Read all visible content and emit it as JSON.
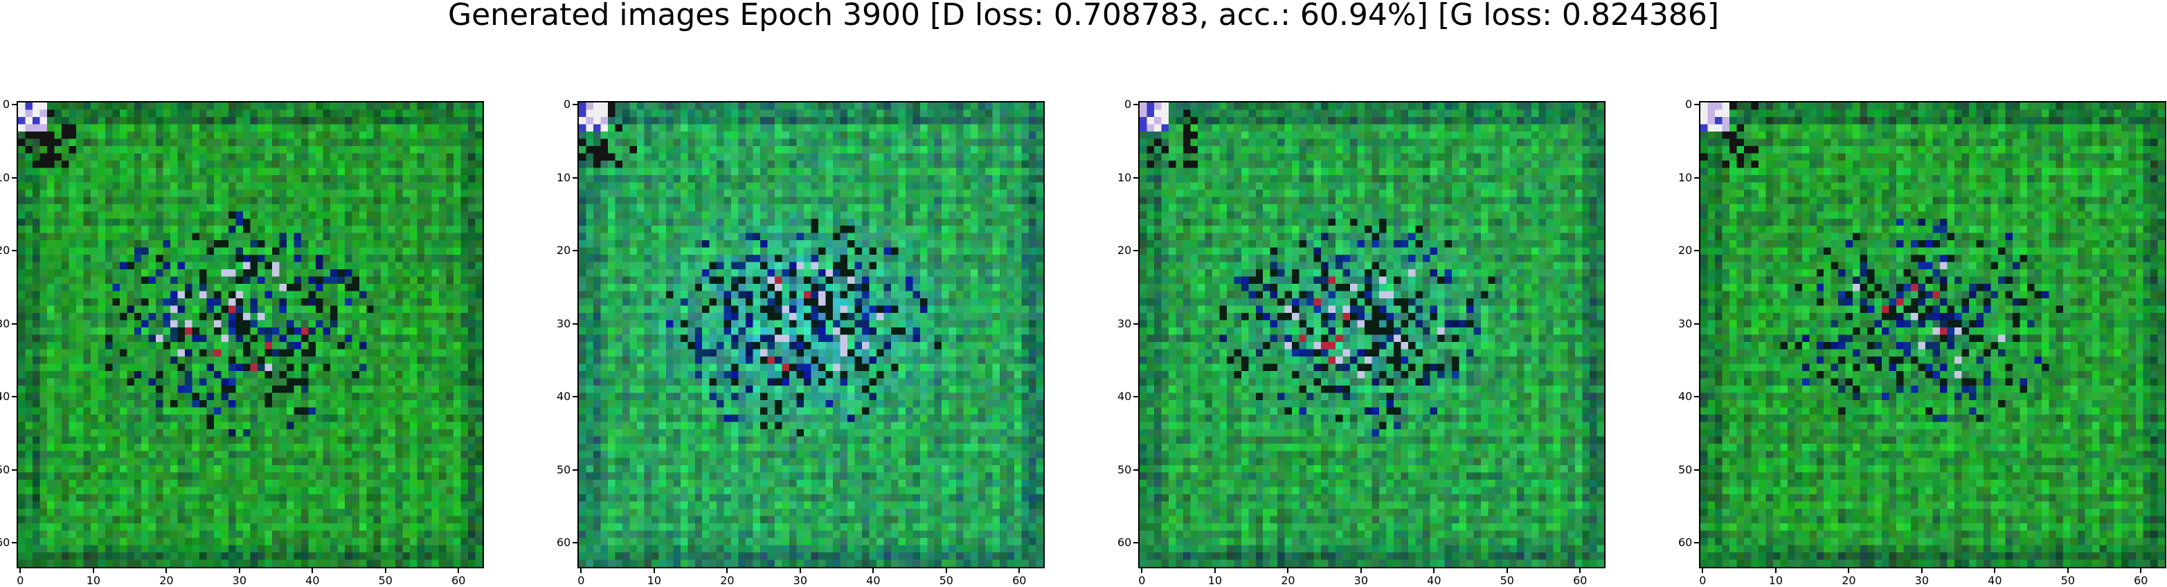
{
  "figure": {
    "title": "Generated images Epoch 3900 [D loss: 0.708783, acc.: 60.94%] [G loss: 0.824386]"
  },
  "panels": [
    {
      "name": "generated-image-1",
      "tint": "green",
      "cyan_strength": 0.15
    },
    {
      "name": "generated-image-2",
      "tint": "cyan",
      "cyan_strength": 0.85
    },
    {
      "name": "generated-image-3",
      "tint": "cyan",
      "cyan_strength": 0.55
    },
    {
      "name": "generated-image-4",
      "tint": "green",
      "cyan_strength": 0.2
    }
  ],
  "axes": {
    "x_ticks": [
      "0",
      "10",
      "20",
      "30",
      "40",
      "50",
      "60"
    ],
    "y_ticks": [
      "0",
      "10",
      "20",
      "30",
      "40",
      "50",
      "60"
    ],
    "image_size": 64
  },
  "colors": {
    "base_green": "#1e9a1e",
    "dark_green": "#0a5a0a",
    "cyan": "#3cc8b4",
    "navy": "#0a0a5a"
  }
}
